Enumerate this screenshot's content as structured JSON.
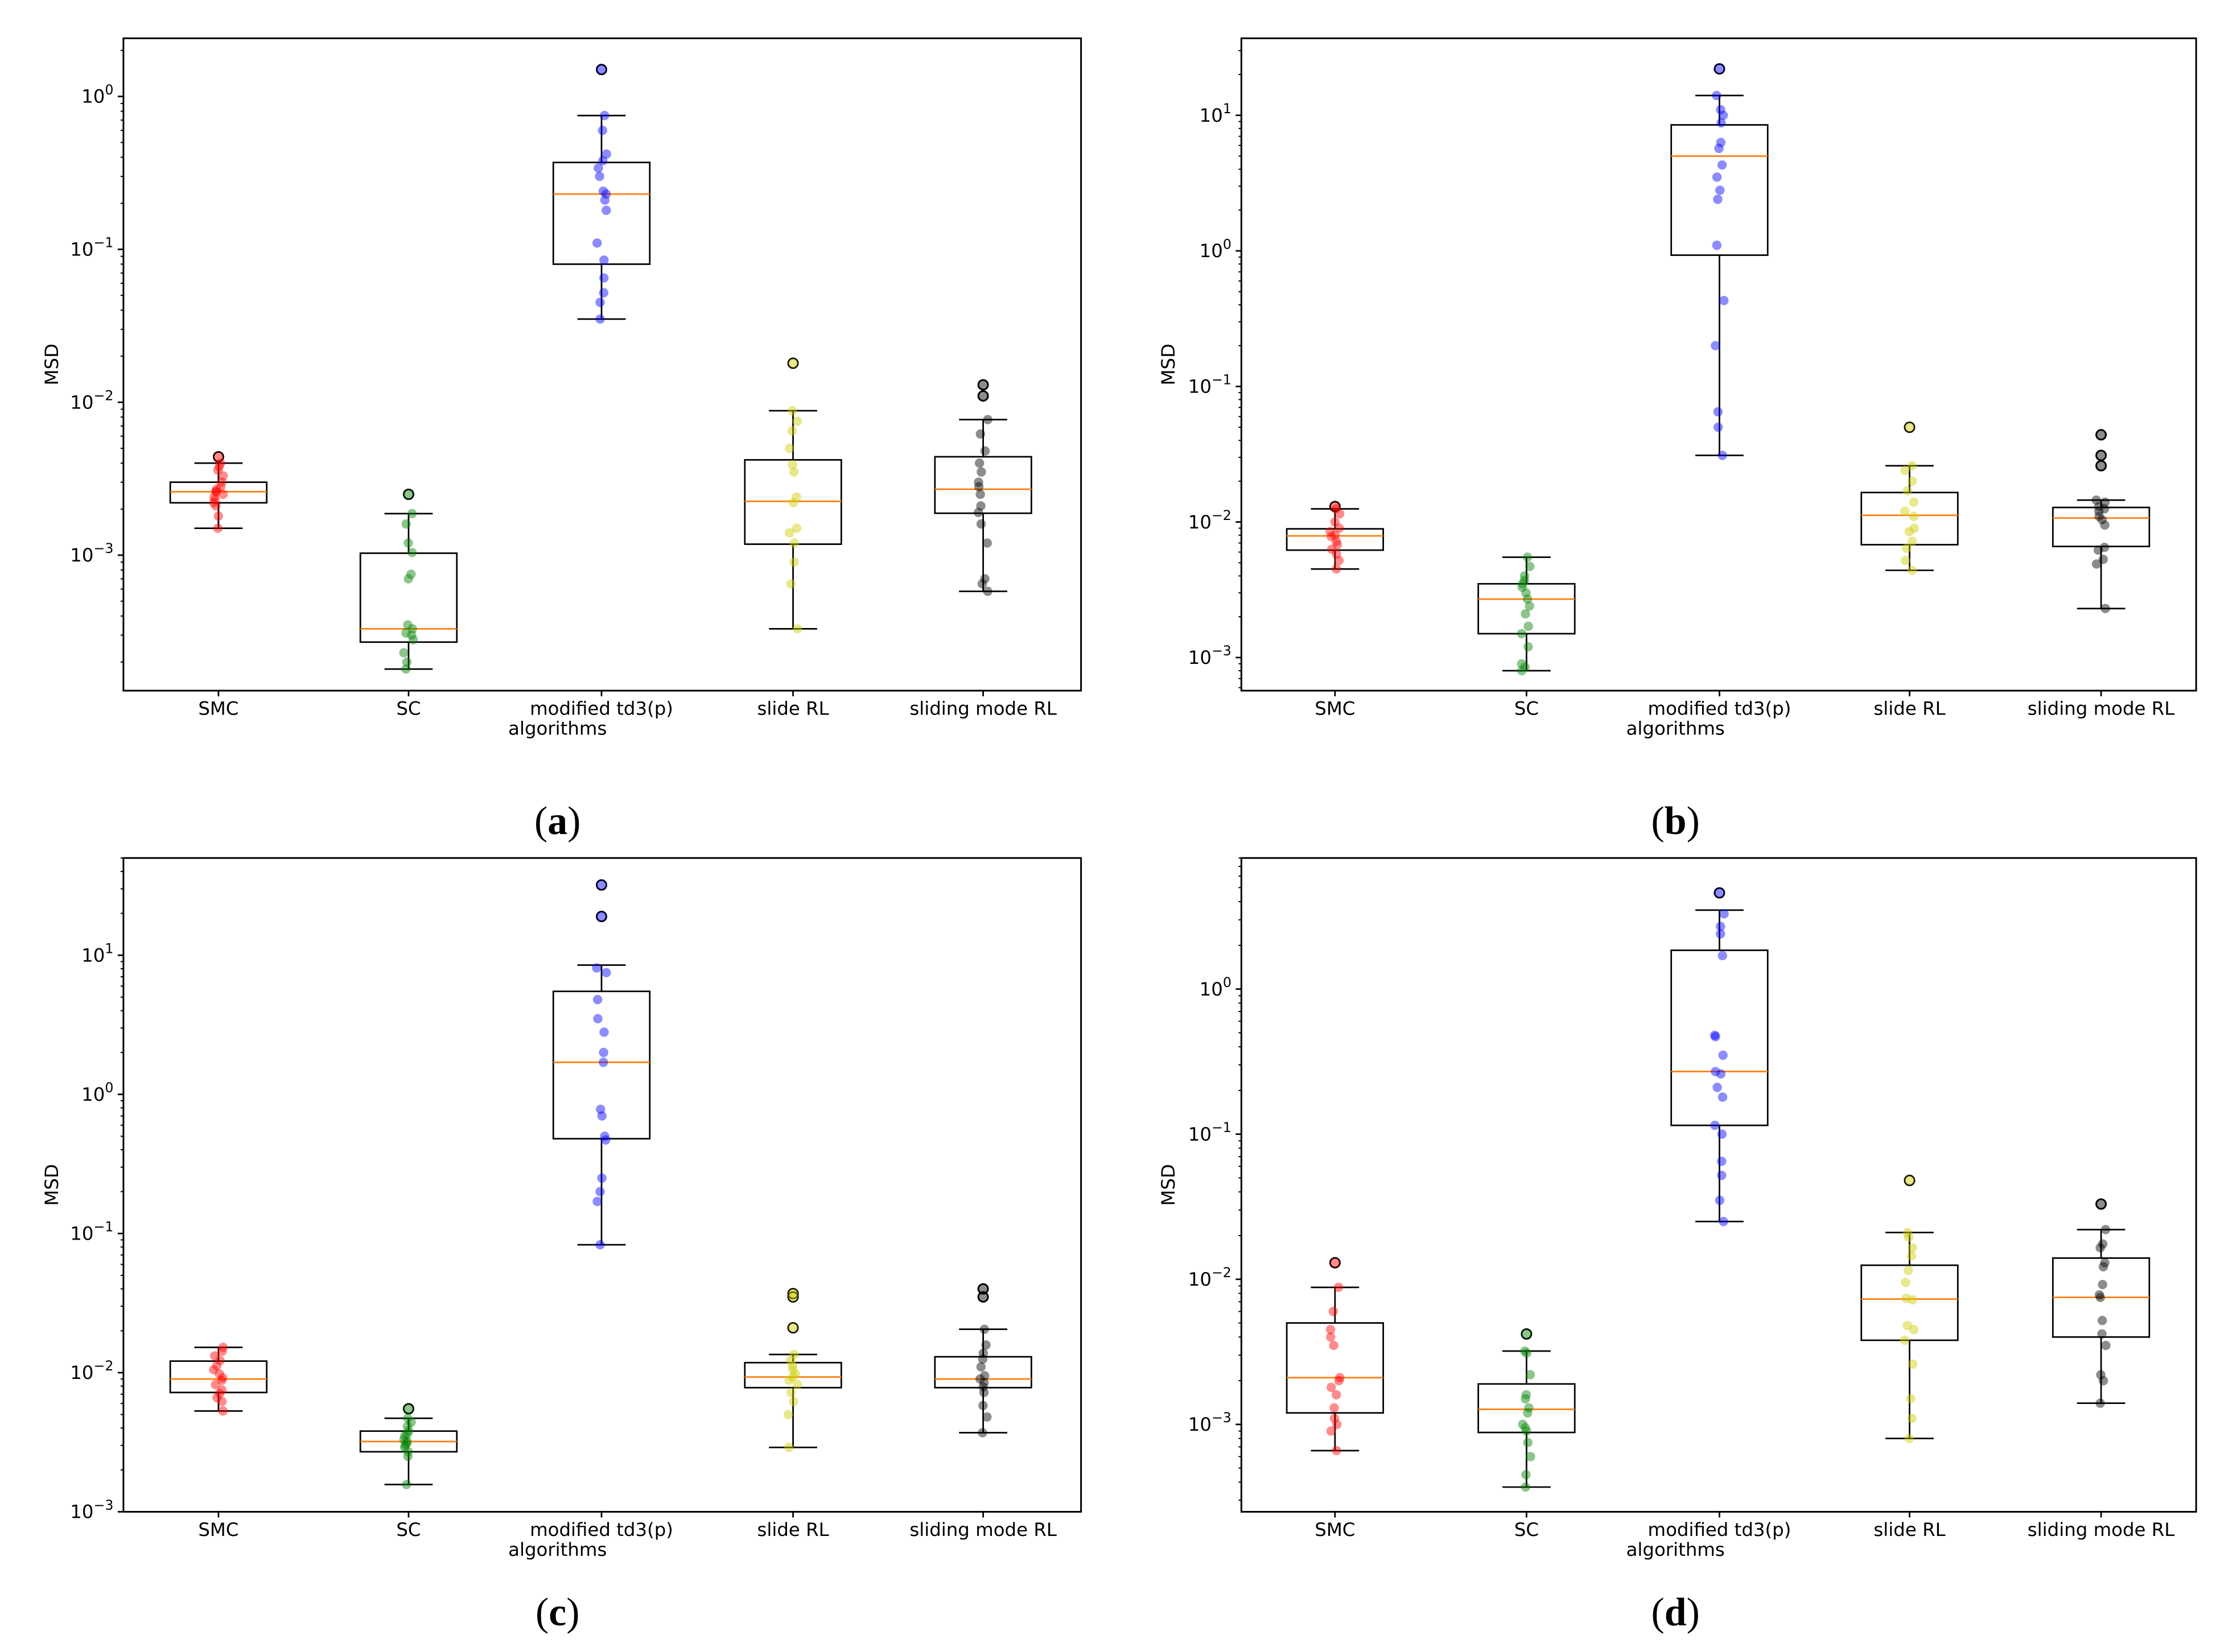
{
  "chart_data": [
    {
      "type": "box",
      "panel_label": "a",
      "xlabel": "algorithms",
      "ylabel": "MSD",
      "yscale": "log",
      "ylim": [
        0.00013,
        2.4
      ],
      "categories": [
        "SMC",
        "SC",
        "modified td3(p)",
        "slide RL",
        "sliding mode RL"
      ],
      "series": [
        {
          "name": "SMC",
          "color": "#ff0000",
          "q1": 0.0022,
          "median": 0.0026,
          "q3": 0.003,
          "whisker_low": 0.0015,
          "whisker_high": 0.004,
          "points": [
            0.0015,
            0.0018,
            0.0021,
            0.0022,
            0.0023,
            0.0024,
            0.0025,
            0.0026,
            0.0026,
            0.0027,
            0.0028,
            0.003,
            0.0033,
            0.0036,
            0.0038,
            0.004,
            0.0044
          ],
          "outliers": [
            0.0044
          ]
        },
        {
          "name": "SC",
          "color": "#008000",
          "q1": 0.00027,
          "median": 0.00033,
          "q3": 0.00103,
          "whisker_low": 0.00018,
          "whisker_high": 0.00187,
          "points": [
            0.00018,
            0.0002,
            0.00023,
            0.00028,
            0.0003,
            0.00031,
            0.00033,
            0.00035,
            0.0007,
            0.00075,
            0.00104,
            0.0012,
            0.0016,
            0.00187,
            0.0025
          ],
          "outliers": [
            0.0025
          ]
        },
        {
          "name": "modified td3(p)",
          "color": "#0000ff",
          "q1": 0.08,
          "median": 0.23,
          "q3": 0.37,
          "whisker_low": 0.035,
          "whisker_high": 0.75,
          "points": [
            0.035,
            0.045,
            0.052,
            0.065,
            0.085,
            0.11,
            0.18,
            0.21,
            0.23,
            0.24,
            0.3,
            0.34,
            0.38,
            0.42,
            0.6,
            0.75,
            1.5
          ],
          "outliers": [
            1.5
          ]
        },
        {
          "name": "slide RL",
          "color": "#cccc00",
          "q1": 0.00118,
          "median": 0.00225,
          "q3": 0.0042,
          "whisker_low": 0.00033,
          "whisker_high": 0.0088,
          "points": [
            0.00033,
            0.00065,
            0.0009,
            0.0012,
            0.0014,
            0.0015,
            0.0022,
            0.0024,
            0.0035,
            0.0039,
            0.005,
            0.0065,
            0.0075,
            0.0088,
            0.018
          ],
          "outliers": [
            0.018
          ]
        },
        {
          "name": "sliding mode RL",
          "color": "#000000",
          "q1": 0.00188,
          "median": 0.0027,
          "q3": 0.0044,
          "whisker_low": 0.00058,
          "whisker_high": 0.0077,
          "points": [
            0.00058,
            0.00065,
            0.0007,
            0.0012,
            0.0016,
            0.0019,
            0.0021,
            0.0025,
            0.0028,
            0.003,
            0.0035,
            0.004,
            0.0048,
            0.0062,
            0.0077,
            0.011,
            0.013
          ],
          "outliers": [
            0.011,
            0.013
          ]
        }
      ]
    },
    {
      "type": "box",
      "panel_label": "b",
      "xlabel": "algorithms",
      "ylabel": "MSD",
      "yscale": "log",
      "ylim": [
        0.00057,
        37
      ],
      "categories": [
        "SMC",
        "SC",
        "modified td3(p)",
        "slide RL",
        "sliding mode RL"
      ],
      "series": [
        {
          "name": "SMC",
          "color": "#ff0000",
          "q1": 0.0062,
          "median": 0.0079,
          "q3": 0.0089,
          "whisker_low": 0.0045,
          "whisker_high": 0.0125,
          "points": [
            0.0045,
            0.0052,
            0.0058,
            0.0063,
            0.0068,
            0.0072,
            0.0078,
            0.008,
            0.0085,
            0.009,
            0.01,
            0.0115,
            0.0125,
            0.013
          ],
          "outliers": [
            0.013
          ]
        },
        {
          "name": "SC",
          "color": "#008000",
          "q1": 0.0015,
          "median": 0.0027,
          "q3": 0.0035,
          "whisker_low": 0.0008,
          "whisker_high": 0.0055,
          "points": [
            0.0008,
            0.00085,
            0.0009,
            0.0012,
            0.0015,
            0.0017,
            0.0021,
            0.0024,
            0.0027,
            0.003,
            0.0033,
            0.0035,
            0.0037,
            0.004,
            0.0047,
            0.0055
          ],
          "outliers": []
        },
        {
          "name": "modified td3(p)",
          "color": "#0000ff",
          "q1": 0.93,
          "median": 5.0,
          "q3": 8.5,
          "whisker_low": 0.031,
          "whisker_high": 14.0,
          "points": [
            0.031,
            0.05,
            0.065,
            0.2,
            0.43,
            1.1,
            2.4,
            2.8,
            3.5,
            4.3,
            5.7,
            6.3,
            8.8,
            10.0,
            11.0,
            14.0,
            22.0
          ],
          "outliers": [
            22.0
          ]
        },
        {
          "name": "slide RL",
          "color": "#cccc00",
          "q1": 0.0068,
          "median": 0.0112,
          "q3": 0.0165,
          "whisker_low": 0.0044,
          "whisker_high": 0.026,
          "points": [
            0.0044,
            0.0052,
            0.0064,
            0.0072,
            0.0085,
            0.009,
            0.011,
            0.012,
            0.014,
            0.017,
            0.02,
            0.024,
            0.026,
            0.05
          ],
          "outliers": [
            0.05
          ]
        },
        {
          "name": "sliding mode RL",
          "color": "#000000",
          "q1": 0.0066,
          "median": 0.0107,
          "q3": 0.0128,
          "whisker_low": 0.0023,
          "whisker_high": 0.0145,
          "points": [
            0.0023,
            0.0049,
            0.0053,
            0.0062,
            0.0065,
            0.0095,
            0.0104,
            0.011,
            0.012,
            0.0125,
            0.013,
            0.014,
            0.0145,
            0.026,
            0.031,
            0.044
          ],
          "outliers": [
            0.026,
            0.031,
            0.044
          ]
        }
      ]
    },
    {
      "type": "box",
      "panel_label": "c",
      "xlabel": "algorithms",
      "ylabel": "MSD",
      "yscale": "log",
      "ylim": [
        0.001,
        50
      ],
      "categories": [
        "SMC",
        "SC",
        "modified td3(p)",
        "slide RL",
        "sliding mode RL"
      ],
      "series": [
        {
          "name": "SMC",
          "color": "#ff0000",
          "q1": 0.0072,
          "median": 0.009,
          "q3": 0.0121,
          "whisker_low": 0.0053,
          "whisker_high": 0.0152,
          "points": [
            0.0053,
            0.0062,
            0.0066,
            0.0071,
            0.0075,
            0.0082,
            0.0088,
            0.0092,
            0.0098,
            0.0105,
            0.0112,
            0.0122,
            0.0132,
            0.0142,
            0.0152
          ],
          "outliers": []
        },
        {
          "name": "SC",
          "color": "#008000",
          "q1": 0.0027,
          "median": 0.0032,
          "q3": 0.0038,
          "whisker_low": 0.00157,
          "whisker_high": 0.0047,
          "points": [
            0.00157,
            0.0025,
            0.0027,
            0.0029,
            0.003,
            0.0031,
            0.0032,
            0.0033,
            0.0035,
            0.0036,
            0.0038,
            0.0041,
            0.0044,
            0.0047,
            0.0055
          ],
          "outliers": [
            0.0055
          ]
        },
        {
          "name": "modified td3(p)",
          "color": "#0000ff",
          "q1": 0.48,
          "median": 1.7,
          "q3": 5.5,
          "whisker_low": 0.083,
          "whisker_high": 8.5,
          "points": [
            0.083,
            0.17,
            0.2,
            0.25,
            0.47,
            0.5,
            0.7,
            0.78,
            1.7,
            2.0,
            2.8,
            3.5,
            4.8,
            7.5,
            8.1,
            19.0,
            32.0
          ],
          "outliers": [
            19.0,
            32.0
          ]
        },
        {
          "name": "slide RL",
          "color": "#cccc00",
          "q1": 0.0078,
          "median": 0.0093,
          "q3": 0.0118,
          "whisker_low": 0.0029,
          "whisker_high": 0.0135,
          "points": [
            0.0029,
            0.005,
            0.0062,
            0.0072,
            0.0082,
            0.0088,
            0.0093,
            0.0098,
            0.0105,
            0.0112,
            0.0122,
            0.0135,
            0.021,
            0.035,
            0.037
          ],
          "outliers": [
            0.021,
            0.035,
            0.037
          ]
        },
        {
          "name": "sliding mode RL",
          "color": "#000000",
          "q1": 0.0078,
          "median": 0.009,
          "q3": 0.013,
          "whisker_low": 0.0037,
          "whisker_high": 0.0205,
          "points": [
            0.0037,
            0.0048,
            0.0058,
            0.0072,
            0.0079,
            0.0085,
            0.009,
            0.0095,
            0.011,
            0.0125,
            0.0138,
            0.0158,
            0.0205,
            0.035,
            0.04
          ],
          "outliers": [
            0.035,
            0.04
          ]
        }
      ]
    },
    {
      "type": "box",
      "panel_label": "d",
      "xlabel": "algorithms",
      "ylabel": "MSD",
      "yscale": "log",
      "ylim": [
        0.00025,
        8
      ],
      "categories": [
        "SMC",
        "SC",
        "modified td3(p)",
        "slide RL",
        "sliding mode RL"
      ],
      "series": [
        {
          "name": "SMC",
          "color": "#ff0000",
          "q1": 0.0012,
          "median": 0.0021,
          "q3": 0.005,
          "whisker_low": 0.00066,
          "whisker_high": 0.0088,
          "points": [
            0.00066,
            0.0009,
            0.001,
            0.0011,
            0.0013,
            0.0016,
            0.0018,
            0.002,
            0.0021,
            0.0035,
            0.004,
            0.0045,
            0.006,
            0.0088,
            0.013
          ],
          "outliers": [
            0.013
          ]
        },
        {
          "name": "SC",
          "color": "#008000",
          "q1": 0.00088,
          "median": 0.00127,
          "q3": 0.0019,
          "whisker_low": 0.00037,
          "whisker_high": 0.0032,
          "points": [
            0.00037,
            0.00045,
            0.0006,
            0.00075,
            0.0009,
            0.00095,
            0.001,
            0.0012,
            0.0013,
            0.0015,
            0.0016,
            0.0022,
            0.0031,
            0.0032,
            0.0042
          ],
          "outliers": [
            0.0042
          ]
        },
        {
          "name": "modified td3(p)",
          "color": "#0000ff",
          "q1": 0.115,
          "median": 0.27,
          "q3": 1.85,
          "whisker_low": 0.025,
          "whisker_high": 3.5,
          "points": [
            0.025,
            0.035,
            0.052,
            0.065,
            0.1,
            0.115,
            0.18,
            0.21,
            0.26,
            0.27,
            0.35,
            0.47,
            0.48,
            1.7,
            2.4,
            2.7,
            3.3,
            4.6
          ],
          "outliers": [
            4.6
          ]
        },
        {
          "name": "slide RL",
          "color": "#cccc00",
          "q1": 0.0038,
          "median": 0.0073,
          "q3": 0.0125,
          "whisker_low": 0.0008,
          "whisker_high": 0.021,
          "points": [
            0.0008,
            0.0011,
            0.0015,
            0.0026,
            0.0038,
            0.0045,
            0.0048,
            0.0072,
            0.0074,
            0.0095,
            0.0115,
            0.0145,
            0.0165,
            0.0195,
            0.021,
            0.048
          ],
          "outliers": [
            0.048
          ]
        },
        {
          "name": "sliding mode RL",
          "color": "#000000",
          "q1": 0.004,
          "median": 0.0075,
          "q3": 0.014,
          "whisker_low": 0.0014,
          "whisker_high": 0.022,
          "points": [
            0.0014,
            0.002,
            0.0022,
            0.0035,
            0.0042,
            0.0052,
            0.0075,
            0.0078,
            0.0092,
            0.0122,
            0.013,
            0.0165,
            0.0175,
            0.022,
            0.033
          ],
          "outliers": [
            0.033
          ]
        }
      ]
    }
  ]
}
